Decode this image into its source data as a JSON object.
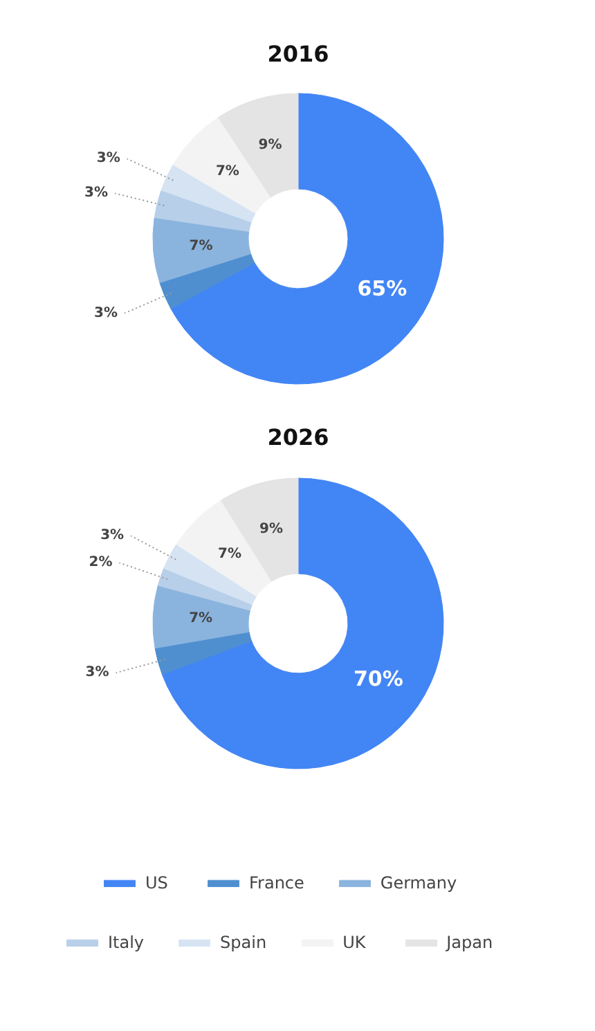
{
  "chart_data": [
    {
      "type": "donut",
      "title": "2016",
      "categories": [
        "US",
        "France",
        "Germany",
        "Italy",
        "Spain",
        "UK",
        "Japan"
      ],
      "values": [
        65,
        3,
        7,
        3,
        3,
        7,
        9
      ],
      "value_labels": [
        "65%",
        "3%",
        "7%",
        "3%",
        "3%",
        "7%",
        "9%"
      ],
      "colors": [
        "#4285f4",
        "#4f8fd0",
        "#8ab4de",
        "#b7cfe9",
        "#d5e3f3",
        "#f3f3f3",
        "#e4e4e4"
      ],
      "legend": "bottom"
    },
    {
      "type": "donut",
      "title": "2026",
      "categories": [
        null,
        null,
        null,
        null,
        null,
        null,
        null
      ],
      "values": [
        70,
        3,
        7,
        2,
        3,
        7,
        9
      ],
      "value_labels": [
        "70%",
        "3%",
        "7%",
        "2%",
        "3%",
        "7%",
        "9%"
      ],
      "colors": [
        "#4285f4",
        "#4f8fd0",
        "#8ab4de",
        "#b7cfe9",
        "#d5e3f3",
        "#f3f3f3",
        "#e4e4e4"
      ]
    }
  ]
}
